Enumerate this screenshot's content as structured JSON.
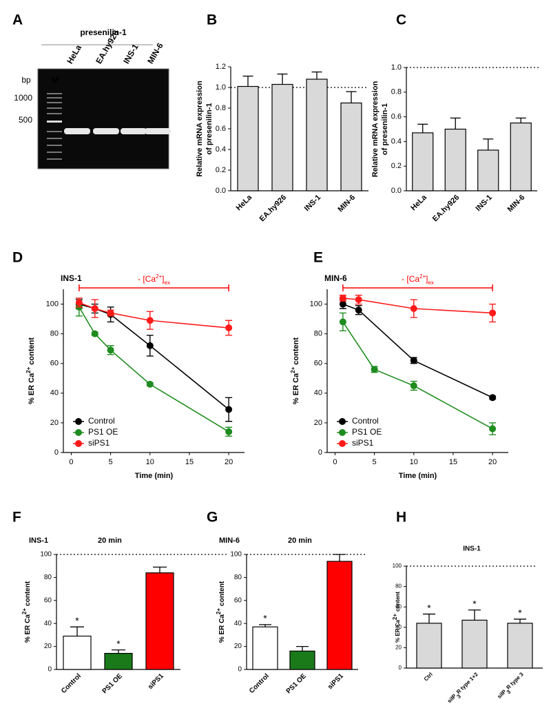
{
  "chart_data": [
    {
      "type": "gel",
      "label": "A",
      "title": "presenilin-1",
      "ylabel": "bp",
      "marker": "M",
      "markers": [
        1000,
        500
      ],
      "categories": [
        "HeLa",
        "EA.hy926",
        "INS-1",
        "MIN-6"
      ]
    },
    {
      "type": "bar",
      "label": "B",
      "categories": [
        "HeLa",
        "EA.hy926",
        "INS-1",
        "MIN-6"
      ],
      "values": [
        1.01,
        1.03,
        1.08,
        0.85
      ],
      "errors": [
        0.1,
        0.1,
        0.07,
        0.11
      ],
      "color": "#d9d9d9",
      "ylim": [
        0,
        1.2
      ],
      "yticks": [
        {
          "value": 0,
          "label": "0.0"
        },
        0.2,
        0.4,
        0.6,
        0.8,
        {
          "value": 1,
          "label": "1.0"
        },
        1.2
      ],
      "refline": 1,
      "ylabel": [
        "Relative mRNA expression",
        "of presenilin-1"
      ]
    },
    {
      "type": "bar",
      "label": "C",
      "categories": [
        "HeLa",
        "EA.hy926",
        "INS-1",
        "MIN-6"
      ],
      "values": [
        0.47,
        0.5,
        0.33,
        0.55
      ],
      "errors": [
        0.07,
        0.09,
        0.09,
        0.04
      ],
      "color": "#d9d9d9",
      "ylim": [
        0,
        1
      ],
      "yticks": [
        {
          "value": 0,
          "label": "0.0"
        },
        0.2,
        0.4,
        0.6,
        0.8,
        {
          "value": 1,
          "label": "1.0"
        }
      ],
      "refline": 1,
      "ylabel": [
        "Relative mRNA expression",
        "of presenilin-1"
      ]
    },
    {
      "type": "line",
      "label": "D",
      "title": "INS-1",
      "annotation": {
        "text": "- [Ca",
        "sup": "2+",
        "after": "]",
        "sub": "ex"
      },
      "xlabel": "Time (min)",
      "ylabel": {
        "text": "% ER Ca",
        "sup": "2+",
        "after": "content"
      },
      "xlim": [
        -1,
        22
      ],
      "xticks": [
        0,
        5,
        10,
        15,
        20
      ],
      "ylim": [
        0,
        110
      ],
      "yticks": [
        0,
        20,
        40,
        60,
        80,
        100
      ],
      "series": [
        {
          "name": "Control",
          "color": "#000000",
          "x": [
            1,
            3,
            5,
            10,
            20
          ],
          "values": [
            100,
            97,
            93,
            72,
            29
          ],
          "errors": [
            3,
            3,
            5,
            7,
            8
          ]
        },
        {
          "name": "PS1 OE",
          "color": "#1e8c1e",
          "x": [
            1,
            3,
            5,
            10,
            20
          ],
          "values": [
            98,
            80,
            69,
            46,
            14
          ],
          "errors": [
            6,
            1,
            3,
            1,
            3
          ]
        },
        {
          "name": "siPS1",
          "color": "#ff1a1a",
          "x": [
            1,
            3,
            5,
            10,
            20
          ],
          "values": [
            101,
            97,
            94,
            89,
            84
          ],
          "errors": [
            3,
            6,
            2,
            6,
            5
          ]
        }
      ]
    },
    {
      "type": "line",
      "label": "E",
      "title": "MIN-6",
      "annotation": {
        "text": "- [Ca",
        "sup": "2+",
        "after": "]",
        "sub": "ex"
      },
      "xlabel": "Time (min)",
      "ylabel": {
        "text": "% ER Ca",
        "sup": "2+",
        "after": "content"
      },
      "xlim": [
        -1,
        22
      ],
      "xticks": [
        0,
        5,
        10,
        15,
        20
      ],
      "ylim": [
        0,
        110
      ],
      "yticks": [
        0,
        20,
        40,
        60,
        80,
        100
      ],
      "series": [
        {
          "name": "Control",
          "color": "#000000",
          "x": [
            1,
            3,
            10,
            20
          ],
          "values": [
            100,
            96,
            62,
            37
          ],
          "errors": [
            3,
            3,
            2,
            1
          ]
        },
        {
          "name": "PS1 OE",
          "color": "#1e8c1e",
          "x": [
            1,
            5,
            10,
            20
          ],
          "values": [
            88,
            56,
            45,
            16
          ],
          "errors": [
            6,
            2,
            3,
            4
          ]
        },
        {
          "name": "siPS1",
          "color": "#ff1a1a",
          "x": [
            1,
            3,
            10,
            20
          ],
          "values": [
            104,
            103,
            97,
            94
          ],
          "errors": [
            2,
            3,
            6,
            6
          ]
        }
      ]
    },
    {
      "type": "bar",
      "label": "F",
      "title": "INS-1",
      "subtitle": "20 min",
      "categories": [
        "Control",
        "PS1 OE",
        "siPS1"
      ],
      "values": [
        29,
        14,
        84
      ],
      "errors": [
        8,
        3,
        5
      ],
      "colors": [
        "#ffffff",
        "#1a7a1a",
        "#ff0000"
      ],
      "stars": [
        "*",
        "*",
        null
      ],
      "ylim": [
        0,
        100
      ],
      "yticks": [
        0,
        20,
        40,
        60,
        80,
        100
      ],
      "refline": 100,
      "ylabel": {
        "text": "% ER Ca",
        "sup": "2+",
        "after": "content"
      }
    },
    {
      "type": "bar",
      "label": "G",
      "title": "MIN-6",
      "subtitle": "20 min",
      "categories": [
        "Control",
        "PS1 OE",
        "siPS1"
      ],
      "values": [
        37,
        16,
        94
      ],
      "errors": [
        2,
        4,
        6
      ],
      "colors": [
        "#ffffff",
        "#1a7a1a",
        "#ff0000"
      ],
      "stars": [
        "*",
        null,
        null
      ],
      "ylim": [
        0,
        100
      ],
      "yticks": [
        0,
        20,
        40,
        60,
        80,
        100
      ],
      "refline": 100,
      "ylabel": {
        "text": "% ER Ca",
        "sup": "2+",
        "after": "content"
      }
    },
    {
      "type": "bar",
      "label": "H",
      "title": "INS-1",
      "categories": [
        "Ctrl",
        {
          "text": "siIP",
          "sub": "3",
          "after": "R type 1+2"
        },
        {
          "text": "siIP",
          "sub": "3",
          "after": "R type 3"
        }
      ],
      "values": [
        44,
        47,
        44
      ],
      "errors": [
        9,
        10,
        4
      ],
      "color": "#d9d9d9",
      "stars": [
        "*",
        "*",
        "*"
      ],
      "ylim": [
        0,
        100
      ],
      "yticks": [
        0,
        20,
        40,
        60,
        80,
        100
      ],
      "refline": 100,
      "ylabel": {
        "text": "% ER Ca",
        "sup": "2+",
        "after": "content"
      }
    }
  ]
}
